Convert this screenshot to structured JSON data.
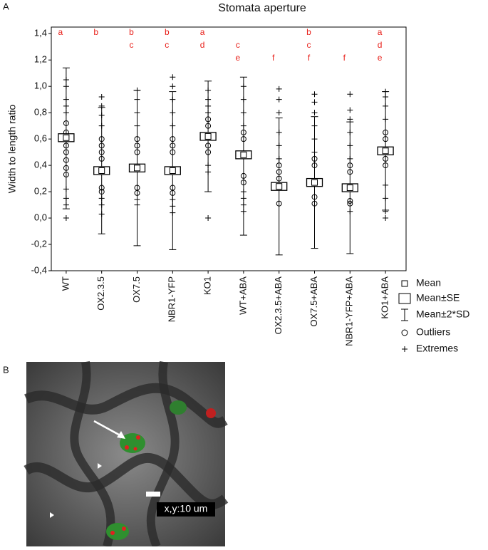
{
  "chart_data": {
    "type": "box",
    "panel_label": "A",
    "title": "Stomata aperture",
    "y_label": "Width to length ratio",
    "categories": [
      "WT",
      "OX2.3.5",
      "OX7.5",
      "NBR1-YFP",
      "KO1",
      "WT+ABA",
      "OX2.3.5+ABA",
      "OX7.5+ABA",
      "NBR1-YFP+ABA",
      "KO1+ABA"
    ],
    "means": [
      0.61,
      0.36,
      0.38,
      0.36,
      0.62,
      0.48,
      0.24,
      0.27,
      0.23,
      0.51
    ],
    "se": [
      0.03,
      0.03,
      0.03,
      0.03,
      0.03,
      0.03,
      0.03,
      0.03,
      0.03,
      0.03
    ],
    "whisker_low": [
      0.07,
      -0.12,
      -0.21,
      -0.24,
      0.2,
      -0.13,
      -0.28,
      -0.23,
      -0.27,
      0.06
    ],
    "whisker_high": [
      1.14,
      0.84,
      0.97,
      0.96,
      1.04,
      1.07,
      0.76,
      0.77,
      0.73,
      0.96
    ],
    "outliers": [
      [
        0.33,
        0.38,
        0.44,
        0.5,
        0.55,
        0.65,
        0.72
      ],
      [
        0.2,
        0.23,
        0.45,
        0.5,
        0.55,
        0.6
      ],
      [
        0.19,
        0.23,
        0.5,
        0.55,
        0.6
      ],
      [
        0.19,
        0.23,
        0.5,
        0.55,
        0.6
      ],
      [
        0.5,
        0.55,
        0.7,
        0.75
      ],
      [
        0.27,
        0.32,
        0.6,
        0.65
      ],
      [
        0.11,
        0.3,
        0.35,
        0.4
      ],
      [
        0.11,
        0.16,
        0.4,
        0.45
      ],
      [
        0.11,
        0.13,
        0.35,
        0.4
      ],
      [
        0.4,
        0.45,
        0.6,
        0.65
      ]
    ],
    "extremes": [
      [
        0,
        0.1,
        0.15,
        0.22,
        0.8,
        0.85,
        0.9,
        1.0,
        1.05
      ],
      [
        0.03,
        0.1,
        0.15,
        0.7,
        0.78,
        0.85,
        0.92
      ],
      [
        0.1,
        0.14,
        0.7,
        0.8,
        0.9,
        0.97
      ],
      [
        0.04,
        0.09,
        0.14,
        0.7,
        0.8,
        0.9,
        1.0,
        1.07
      ],
      [
        0,
        0.35,
        0.4,
        0.8,
        0.85,
        0.9,
        0.97
      ],
      [
        0.05,
        0.1,
        0.15,
        0.2,
        0.7,
        0.8,
        0.9,
        1.0
      ],
      [
        0.45,
        0.55,
        0.65,
        0.8,
        0.9,
        0.98
      ],
      [
        0.5,
        0.6,
        0.7,
        0.8,
        0.88,
        0.94
      ],
      [
        0.05,
        0.45,
        0.55,
        0.65,
        0.75,
        0.82,
        0.94
      ],
      [
        0,
        0.05,
        0.15,
        0.25,
        0.75,
        0.85,
        0.92,
        0.96
      ]
    ],
    "letters": [
      [
        "a",
        null,
        null
      ],
      [
        "b",
        null,
        null
      ],
      [
        "b",
        "c",
        null
      ],
      [
        "b",
        "c",
        null
      ],
      [
        "a",
        "d",
        null
      ],
      [
        null,
        "c",
        "e"
      ],
      [
        null,
        null,
        "f"
      ],
      [
        "b",
        "c",
        "f"
      ],
      [
        null,
        null,
        "f"
      ],
      [
        "a",
        "d",
        "e"
      ]
    ],
    "letter_color": "#e8211b",
    "ylim": [
      -0.4,
      1.45
    ],
    "yticks": [
      {
        "value": -0.4,
        "label": "-0,4"
      },
      {
        "value": -0.2,
        "label": "-0,2"
      },
      {
        "value": 0,
        "label": "0,0"
      },
      {
        "value": 0.2,
        "label": "0,2"
      },
      {
        "value": 0.4,
        "label": "0,4"
      },
      {
        "value": 0.6,
        "label": "0,6"
      },
      {
        "value": 0.8,
        "label": "0,8"
      },
      {
        "value": 1.0,
        "label": "1,0"
      },
      {
        "value": 1.2,
        "label": "1,2"
      },
      {
        "value": 1.4,
        "label": "1,4"
      }
    ],
    "grid": false,
    "legend": [
      "Mean",
      "Mean±SE",
      "Mean±2*SD",
      "Outliers",
      "Extremes"
    ]
  },
  "panel_b": {
    "label": "B",
    "scale_label": "x,y:10 um"
  }
}
